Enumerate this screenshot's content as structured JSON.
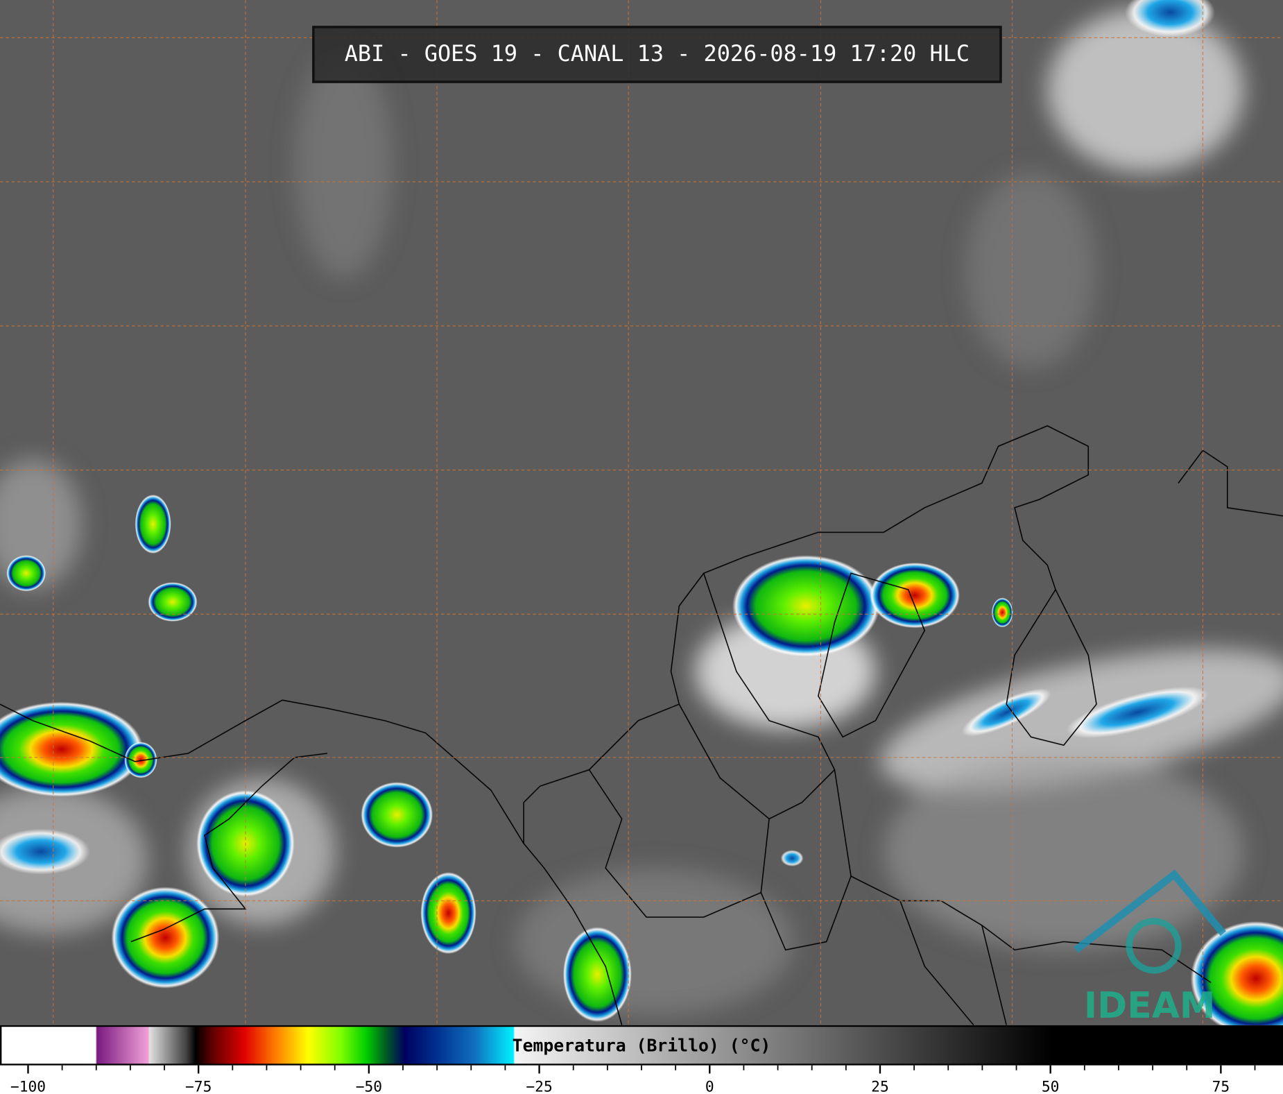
{
  "header": {
    "title": "ABI - GOES 19 - CANAL 13 - 2026-08-19 17:20 HLC"
  },
  "colorbar": {
    "label": "Temperatura (Brillo) (°C)",
    "lim": [
      -104,
      84
    ],
    "ticks": [
      {
        "value": -100,
        "label": "−100"
      },
      {
        "value": -75,
        "label": "−75"
      },
      {
        "value": -50,
        "label": "−50"
      },
      {
        "value": -25,
        "label": "−25"
      },
      0,
      25,
      50,
      75
    ],
    "minor_ticks": [
      -95,
      -90,
      -85,
      -80,
      -70,
      -65,
      -60,
      -55,
      -45,
      -40,
      -35,
      -30,
      -20,
      -15,
      -10,
      -5,
      5,
      10,
      15,
      20,
      30,
      35,
      40,
      45,
      55,
      60,
      65,
      70,
      80
    ]
  },
  "logo": {
    "text": "IDEAM"
  }
}
